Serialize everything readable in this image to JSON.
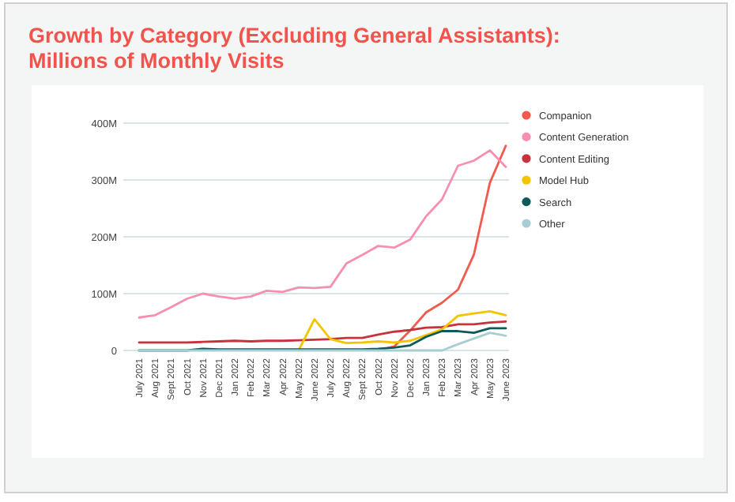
{
  "chart_data": {
    "type": "line",
    "title": "Growth by Category (Excluding General Assistants): Millions of Monthly Visits",
    "categories": [
      "July 2021",
      "Aug 2021",
      "Sept 2021",
      "Oct 2021",
      "Nov 2021",
      "Dec 2021",
      "Jan 2022",
      "Feb 2022",
      "Mar 2022",
      "Apr 2022",
      "May 2022",
      "June 2022",
      "July 2022",
      "Aug 2022",
      "Sept 2022",
      "Oct 2022",
      "Nov 2022",
      "Dec 2022",
      "Jan 2023",
      "Feb 2023",
      "Mar 2023",
      "Apr 2023",
      "May 2023",
      "June 2023"
    ],
    "series": [
      {
        "name": "Companion",
        "color": "#f25a4e",
        "values": [
          null,
          null,
          null,
          null,
          null,
          null,
          null,
          null,
          null,
          null,
          null,
          null,
          null,
          null,
          null,
          0,
          7,
          35,
          67,
          84,
          107,
          169,
          295,
          360
        ]
      },
      {
        "name": "Content Generation",
        "color": "#f78fb3",
        "values": [
          58,
          62,
          76,
          91,
          100,
          95,
          91,
          95,
          105,
          103,
          111,
          110,
          112,
          153,
          168,
          184,
          181,
          195,
          236,
          266,
          325,
          334,
          352,
          323
        ]
      },
      {
        "name": "Content Editing",
        "color": "#c8323c",
        "values": [
          14,
          14,
          14,
          14,
          15,
          16,
          17,
          16,
          17,
          17,
          18,
          19,
          20,
          22,
          22,
          28,
          33,
          36,
          40,
          41,
          46,
          46,
          49,
          51
        ]
      },
      {
        "name": "Model Hub",
        "color": "#f5c400",
        "values": [
          null,
          null,
          null,
          null,
          null,
          null,
          null,
          null,
          null,
          null,
          0,
          55,
          20,
          13,
          14,
          16,
          14,
          17,
          27,
          37,
          61,
          65,
          69,
          62
        ]
      },
      {
        "name": "Search",
        "color": "#0e5a5a",
        "values": [
          0,
          0,
          0,
          0,
          3,
          2,
          2,
          2,
          2,
          2,
          2,
          2,
          2,
          2,
          2,
          3,
          5,
          9,
          24,
          34,
          34,
          31,
          39,
          39
        ]
      },
      {
        "name": "Other",
        "color": "#a8ced3",
        "values": [
          0,
          0,
          0,
          0,
          0,
          0,
          0,
          0,
          0,
          0,
          0,
          0,
          0,
          0,
          0,
          0,
          0,
          0,
          0,
          0,
          11,
          21,
          31,
          26
        ]
      }
    ],
    "ylim": [
      0,
      400
    ],
    "yticks": [
      {
        "value": 0,
        "label": "0"
      },
      {
        "value": 100,
        "label": "100M"
      },
      {
        "value": 200,
        "label": "200M"
      },
      {
        "value": 300,
        "label": "300M"
      },
      {
        "value": 400,
        "label": "400M"
      }
    ],
    "grid": "y",
    "legend": "right",
    "marker": "none",
    "line_style": "solid"
  }
}
